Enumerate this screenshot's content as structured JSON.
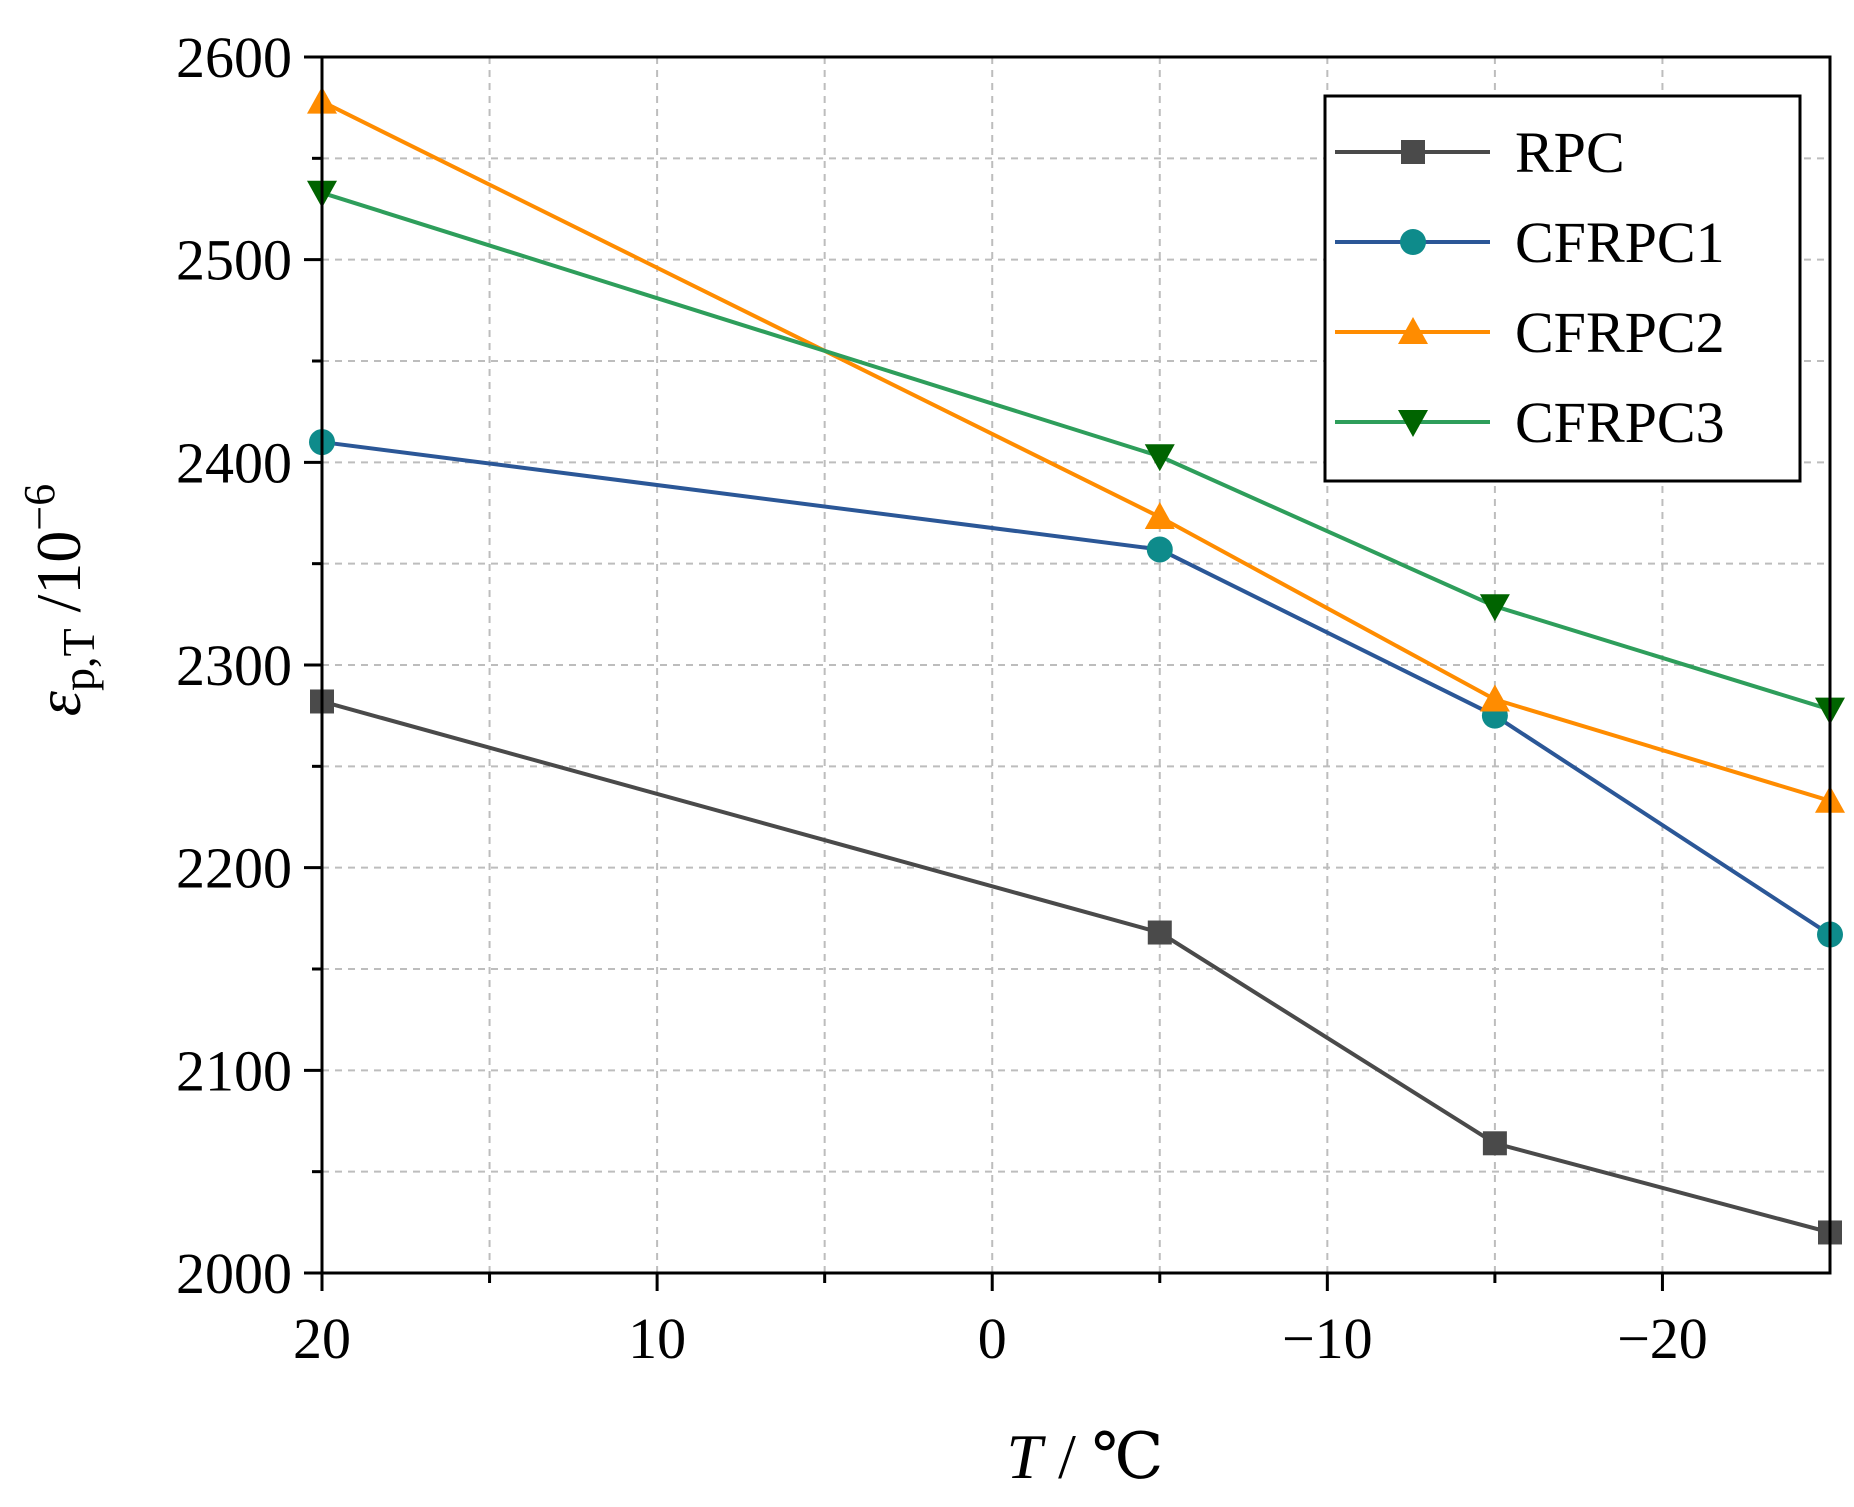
{
  "chart_data": {
    "type": "line",
    "title": "",
    "xlabel": "T / ℃",
    "ylabel": "εp,T /10⁻⁶",
    "ylabel_parts": {
      "symbol": "ε",
      "subscript": "p,T",
      "unit": " /10",
      "exponent": "−6"
    },
    "xlabel_parts": {
      "symbol": "T",
      "unit": " / ℃"
    },
    "x_reversed": true,
    "xlim": [
      20,
      -25
    ],
    "ylim": [
      2000,
      2600
    ],
    "x_ticks": [
      20,
      10,
      0,
      -10,
      -20
    ],
    "x_tick_labels": [
      "20",
      "10",
      "0",
      "−10",
      "−20"
    ],
    "x_minor_ticks": [
      15,
      5,
      -5,
      -15
    ],
    "y_ticks": [
      2000,
      2100,
      2200,
      2300,
      2400,
      2500,
      2600
    ],
    "y_tick_labels": [
      "2000",
      "2100",
      "2200",
      "2300",
      "2400",
      "2500",
      "2600"
    ],
    "y_minor_ticks": [
      2050,
      2150,
      2250,
      2350,
      2450,
      2550
    ],
    "grid": true,
    "legend_position": "top-right",
    "x": [
      20,
      -5,
      -15,
      -25
    ],
    "series": [
      {
        "name": "RPC",
        "color": "#4a4a4a",
        "marker": "square",
        "values": [
          2282,
          2168,
          2064,
          2020
        ]
      },
      {
        "name": "CFRPC1",
        "color": "#2b5797",
        "marker_color": "#0e8b8b",
        "marker": "circle",
        "values": [
          2410,
          2357,
          2275,
          2167
        ]
      },
      {
        "name": "CFRPC2",
        "color": "#ff8c00",
        "marker": "triangle-up",
        "values": [
          2578,
          2373,
          2283,
          2233
        ]
      },
      {
        "name": "CFRPC3",
        "color": "#2e9e5b",
        "marker_color": "#006400",
        "marker": "triangle-down",
        "values": [
          2533,
          2403,
          2329,
          2278
        ]
      }
    ]
  }
}
